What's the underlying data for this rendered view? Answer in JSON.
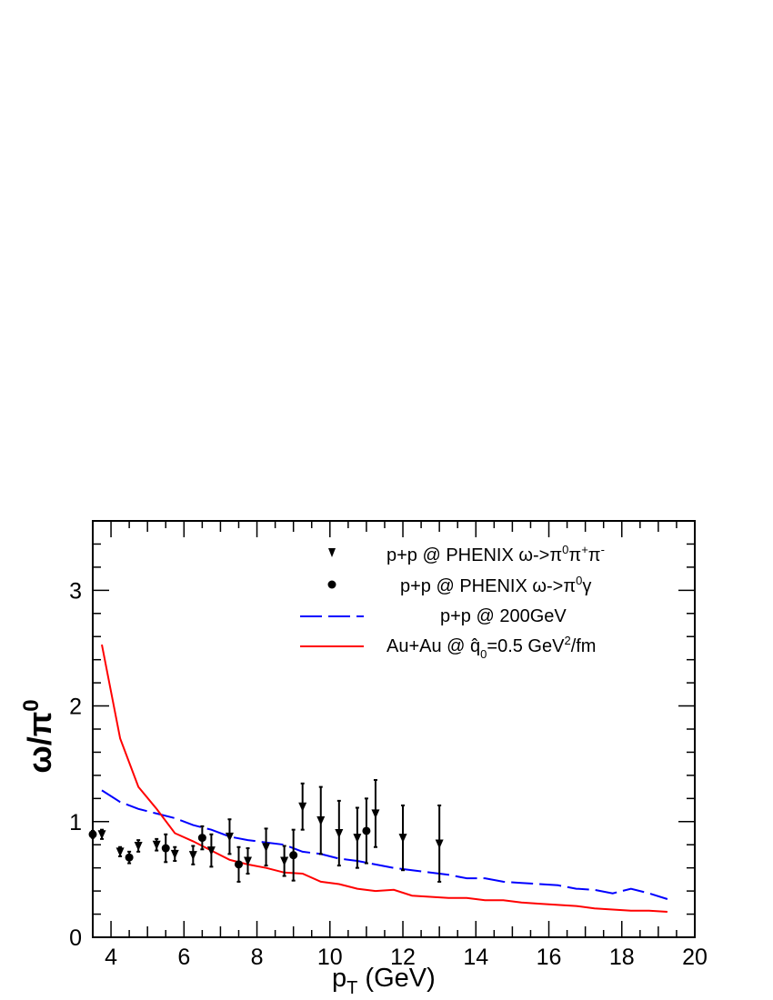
{
  "chart_data": {
    "type": "scatter",
    "xlabel_main": "p",
    "xlabel_sub": "T",
    "xlabel_rest": " (GeV)",
    "ylabel_main": "ω/π",
    "ylabel_sup": "0",
    "xlim": [
      3.5,
      20
    ],
    "ylim": [
      0,
      3.6
    ],
    "x_ticks": [
      4,
      6,
      8,
      10,
      12,
      14,
      16,
      18,
      20
    ],
    "y_ticks": [
      0,
      1,
      2,
      3
    ],
    "legend_position": "top-right",
    "series": [
      {
        "id": "phenix-3pi",
        "marker": "triangle-down",
        "color": "#000000",
        "points": [
          {
            "x": 3.75,
            "y": 0.89,
            "err": 0.04
          },
          {
            "x": 4.25,
            "y": 0.74,
            "err": 0.04
          },
          {
            "x": 4.75,
            "y": 0.79,
            "err": 0.05
          },
          {
            "x": 5.25,
            "y": 0.8,
            "err": 0.05
          },
          {
            "x": 5.75,
            "y": 0.72,
            "err": 0.06
          },
          {
            "x": 6.25,
            "y": 0.71,
            "err": 0.08
          },
          {
            "x": 6.75,
            "y": 0.75,
            "err": 0.14
          },
          {
            "x": 7.25,
            "y": 0.87,
            "err": 0.15
          },
          {
            "x": 7.75,
            "y": 0.66,
            "err": 0.11
          },
          {
            "x": 8.25,
            "y": 0.78,
            "err": 0.16
          },
          {
            "x": 8.75,
            "y": 0.66,
            "err": 0.13
          },
          {
            "x": 9.25,
            "y": 1.13,
            "err": 0.2
          },
          {
            "x": 9.75,
            "y": 1.01,
            "err": 0.29
          },
          {
            "x": 10.25,
            "y": 0.9,
            "err": 0.28
          },
          {
            "x": 10.75,
            "y": 0.86,
            "err": 0.26
          },
          {
            "x": 11.25,
            "y": 1.07,
            "err": 0.29
          },
          {
            "x": 12.0,
            "y": 0.86,
            "err": 0.28
          },
          {
            "x": 13.0,
            "y": 0.81,
            "err": 0.33
          }
        ]
      },
      {
        "id": "phenix-pigamma",
        "marker": "circle",
        "color": "#000000",
        "points": [
          {
            "x": 3.5,
            "y": 0.89,
            "err": 0.03
          },
          {
            "x": 4.5,
            "y": 0.69,
            "err": 0.05
          },
          {
            "x": 5.5,
            "y": 0.77,
            "err": 0.12
          },
          {
            "x": 6.5,
            "y": 0.86,
            "err": 0.1
          },
          {
            "x": 7.5,
            "y": 0.63,
            "err": 0.15
          },
          {
            "x": 9.0,
            "y": 0.71,
            "err": 0.22
          },
          {
            "x": 11.0,
            "y": 0.92,
            "err": 0.28
          }
        ]
      },
      {
        "id": "pp-200",
        "line": "dashed",
        "color": "#0000ff",
        "x": [
          3.75,
          4.25,
          4.75,
          5.25,
          5.75,
          6.25,
          6.75,
          7.25,
          7.75,
          8.25,
          8.75,
          9.25,
          9.75,
          10.25,
          10.75,
          11.25,
          11.75,
          12.25,
          12.75,
          13.25,
          13.75,
          14.25,
          14.75,
          15.25,
          15.75,
          16.25,
          16.75,
          17.25,
          17.75,
          18.25,
          18.75,
          19.25
        ],
        "y": [
          1.27,
          1.17,
          1.11,
          1.07,
          1.03,
          0.97,
          0.93,
          0.87,
          0.84,
          0.82,
          0.8,
          0.74,
          0.72,
          0.68,
          0.66,
          0.63,
          0.6,
          0.58,
          0.56,
          0.54,
          0.51,
          0.51,
          0.48,
          0.47,
          0.46,
          0.45,
          0.42,
          0.41,
          0.38,
          0.42,
          0.38,
          0.33
        ]
      },
      {
        "id": "auau",
        "line": "solid",
        "color": "#ff0000",
        "x": [
          3.75,
          4.25,
          4.75,
          5.25,
          5.75,
          6.25,
          6.75,
          7.25,
          7.75,
          8.25,
          8.75,
          9.25,
          9.75,
          10.25,
          10.75,
          11.25,
          11.75,
          12.25,
          12.75,
          13.25,
          13.75,
          14.25,
          14.75,
          15.25,
          15.75,
          16.25,
          16.75,
          17.25,
          17.75,
          18.25,
          18.75,
          19.25
        ],
        "y": [
          2.53,
          1.72,
          1.3,
          1.11,
          0.9,
          0.83,
          0.75,
          0.67,
          0.63,
          0.6,
          0.56,
          0.55,
          0.48,
          0.46,
          0.42,
          0.4,
          0.41,
          0.36,
          0.35,
          0.34,
          0.34,
          0.32,
          0.32,
          0.3,
          0.29,
          0.28,
          0.27,
          0.25,
          0.24,
          0.23,
          0.23,
          0.22
        ]
      }
    ],
    "legend": {
      "entry1": {
        "a": "p+p @ PHENIX ",
        "b": "ω->π",
        "b_sup": "0",
        "c": "π",
        "c_sup": "+",
        "d": "π",
        "d_sup": "-"
      },
      "entry2": {
        "a": "p+p @ PHENIX ",
        "b": "ω->π",
        "b_sup": "0",
        "c": "γ"
      },
      "entry3": {
        "a": "p+p @ 200GeV"
      },
      "entry4": {
        "a": "Au+Au @ ",
        "b": "q̂",
        "b_sub": "0",
        "c": "=0.5 GeV",
        "c_sup": "2",
        "d": "/fm"
      }
    }
  }
}
